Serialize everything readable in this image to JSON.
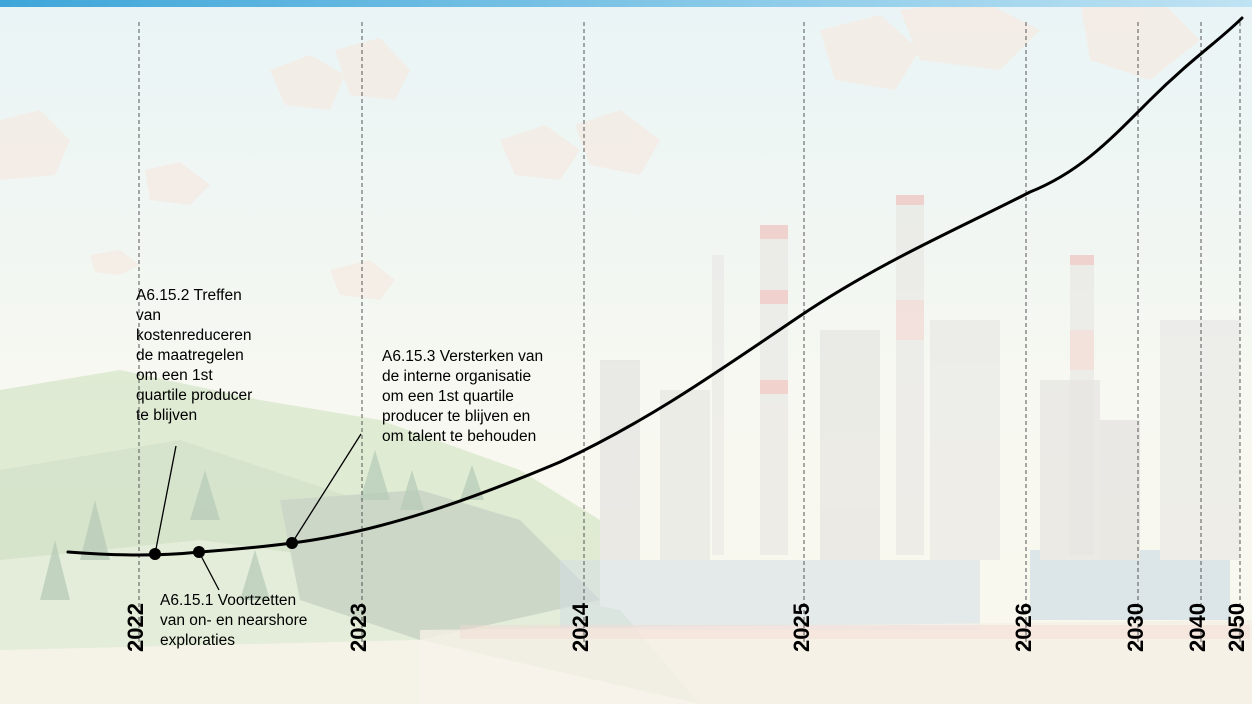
{
  "colors": {
    "top_bar_start": "#3ea6d9",
    "top_bar_end": "#bfe3f3",
    "curve": "#000000",
    "sky": "#dde9e4",
    "hills": "#9fc07e",
    "factory": "#b8bcc1",
    "chimney_stripe": "#d9645a"
  },
  "years": [
    "2022",
    "2023",
    "2024",
    "2025",
    "2026",
    "2030",
    "2040",
    "2050"
  ],
  "milestones": [
    {
      "id": "A6.15.1",
      "text": "A6.15.1 Voortzetten\nvan on- en nearshore\nexploraties"
    },
    {
      "id": "A6.15.2",
      "text": "A6.15.2 Treffen\nvan\nkostenreduceren\nde maatregelen\nom een 1st\nquartile producer\nte blijven"
    },
    {
      "id": "A6.15.3",
      "text": "A6.15.3 Versterken van\nde interne organisatie\nom een 1st quartile\nproducer te blijven en\nom talent te behouden"
    }
  ],
  "background": {
    "theme": "low-poly landscape with refinery",
    "icons": [
      "tree-icon",
      "cloud-icon",
      "chimney-icon",
      "factory-icon"
    ]
  }
}
